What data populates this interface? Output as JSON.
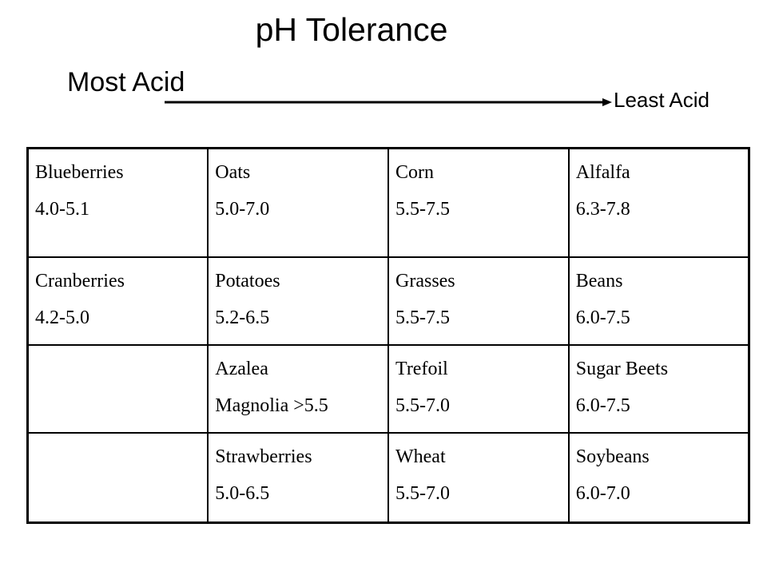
{
  "title": "pH Tolerance",
  "scale": {
    "most_acid": "Most Acid",
    "least_acid": "Least Acid",
    "arrow_icon": "right-arrow-icon"
  },
  "table": {
    "rows": [
      [
        {
          "name": "Blueberries",
          "range": "4.0-5.1"
        },
        {
          "name": "Oats",
          "range": "5.0-7.0"
        },
        {
          "name": "Corn",
          "range": "5.5-7.5"
        },
        {
          "name": "Alfalfa",
          "range": "6.3-7.8"
        }
      ],
      [
        {
          "name": "Cranberries",
          "range": "4.2-5.0"
        },
        {
          "name": "Potatoes",
          "range": "5.2-6.5"
        },
        {
          "name": "Grasses",
          "range": "5.5-7.5"
        },
        {
          "name": "Beans",
          "range": "6.0-7.5"
        }
      ],
      [
        {
          "name": "",
          "range": ""
        },
        {
          "name": "Azalea",
          "range": "Magnolia >5.5"
        },
        {
          "name": "Trefoil",
          "range": "5.5-7.0"
        },
        {
          "name": "Sugar Beets",
          "range": "6.0-7.5"
        }
      ],
      [
        {
          "name": "",
          "range": ""
        },
        {
          "name": "Strawberries",
          "range": "5.0-6.5"
        },
        {
          "name": "Wheat",
          "range": "5.5-7.0"
        },
        {
          "name": "Soybeans",
          "range": "6.0-7.0"
        }
      ]
    ]
  }
}
